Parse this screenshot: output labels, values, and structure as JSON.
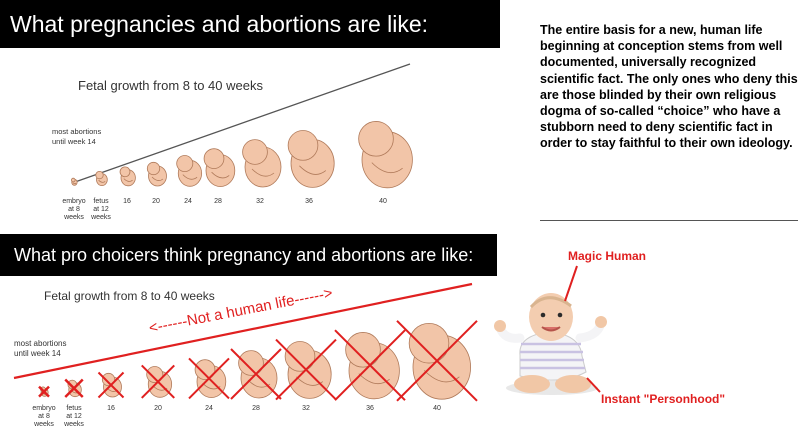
{
  "top_banner": {
    "text": "What pregnancies and abortions are like:"
  },
  "bottom_banner": {
    "text": "What pro choicers think pregnancy and abortions are like:"
  },
  "top_chart": {
    "title": "Fetal growth from 8 to 40 weeks",
    "note_line1": "most abortions",
    "note_line2": "until week 14",
    "ticks": [
      {
        "line1": "embryo",
        "line2": "at 8",
        "line3": "weeks"
      },
      {
        "line1": "fetus",
        "line2": "at 12",
        "line3": "weeks"
      },
      {
        "line1": "16"
      },
      {
        "line1": "20"
      },
      {
        "line1": "24"
      },
      {
        "line1": "28"
      },
      {
        "line1": "32"
      },
      {
        "line1": "36"
      },
      {
        "line1": "40"
      }
    ]
  },
  "bottom_chart": {
    "title": "Fetal growth from 8 to 40 weeks",
    "note_line1": "most abortions",
    "note_line2": "until week 14",
    "annotation": "<------Not a human life------>",
    "ticks": [
      {
        "line1": "embryo",
        "line2": "at 8",
        "line3": "weeks"
      },
      {
        "line1": "fetus",
        "line2": "at 12",
        "line3": "weeks"
      },
      {
        "line1": "16"
      },
      {
        "line1": "20"
      },
      {
        "line1": "24"
      },
      {
        "line1": "28"
      },
      {
        "line1": "32"
      },
      {
        "line1": "36"
      },
      {
        "line1": "40"
      }
    ]
  },
  "right_panel": {
    "paragraph": "The entire basis for a new, human life beginning at conception stems from well documented, universally recognized scientific fact. The only ones who deny this are those blinded by their own religious dogma of so-called “choice” who have a stubborn need to deny scientific fact in order to stay faithful to their own ideology.",
    "magic_human": "Magic Human",
    "personhood": "Instant \"Personhood\""
  },
  "colors": {
    "accent_red": "#e02020",
    "fetus_skin": "#f2c5a8",
    "fetus_outline": "#b07a5a"
  }
}
